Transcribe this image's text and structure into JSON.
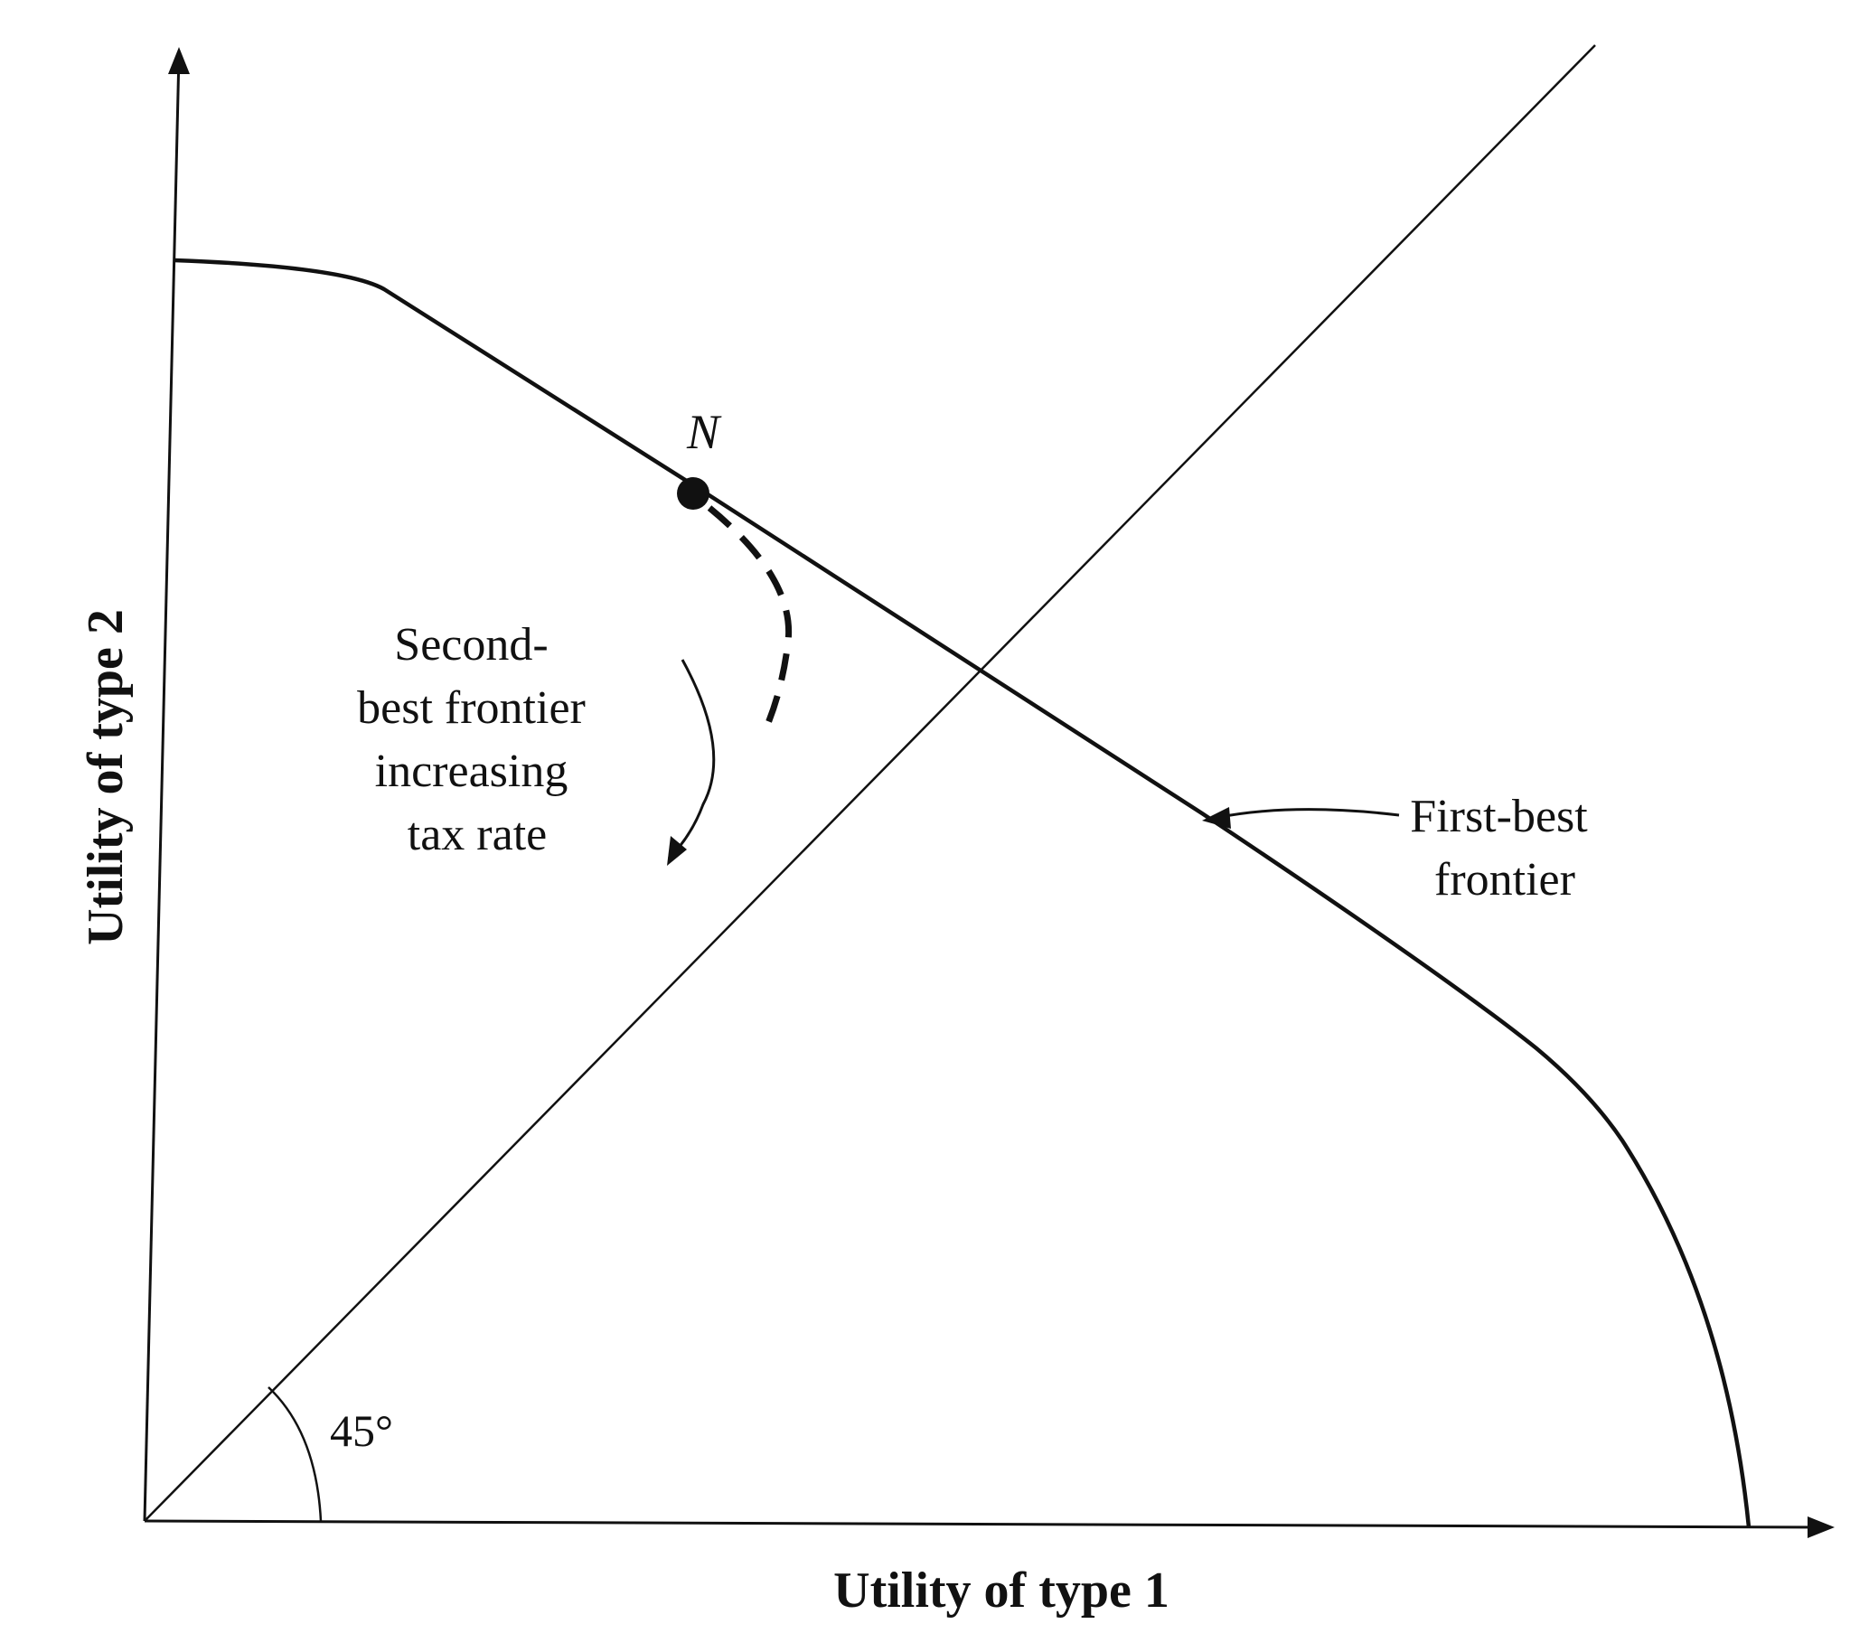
{
  "diagram": {
    "x_axis_label": "Utility of type 1",
    "y_axis_label": "Utility of type 2",
    "point_label": "N",
    "angle_label": "45°",
    "second_best_label": [
      "Second-",
      "best frontier",
      "increasing",
      "tax rate"
    ],
    "first_best_label": [
      "First-best",
      "frontier"
    ]
  },
  "colors": {
    "ink": "#111111",
    "background": "#ffffff"
  }
}
